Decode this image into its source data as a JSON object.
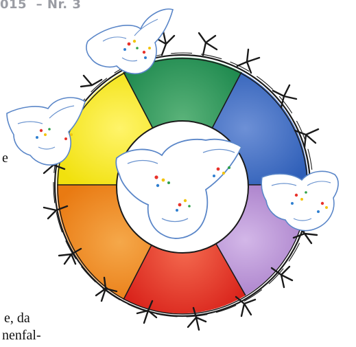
{
  "header": {
    "issue_label": "015  – Nr. 3"
  },
  "text_fragments": {
    "line_e": "e",
    "line_da": "e, da",
    "line_nenfal": "nenfal-"
  },
  "artwork": {
    "subject": "color-wheel-peace-doves-barbed-wire",
    "segment_colors": [
      "#2e9a5a",
      "#3e6fc4",
      "#b48ed3",
      "#e52f24",
      "#ef8a1e",
      "#f3e51a"
    ]
  }
}
